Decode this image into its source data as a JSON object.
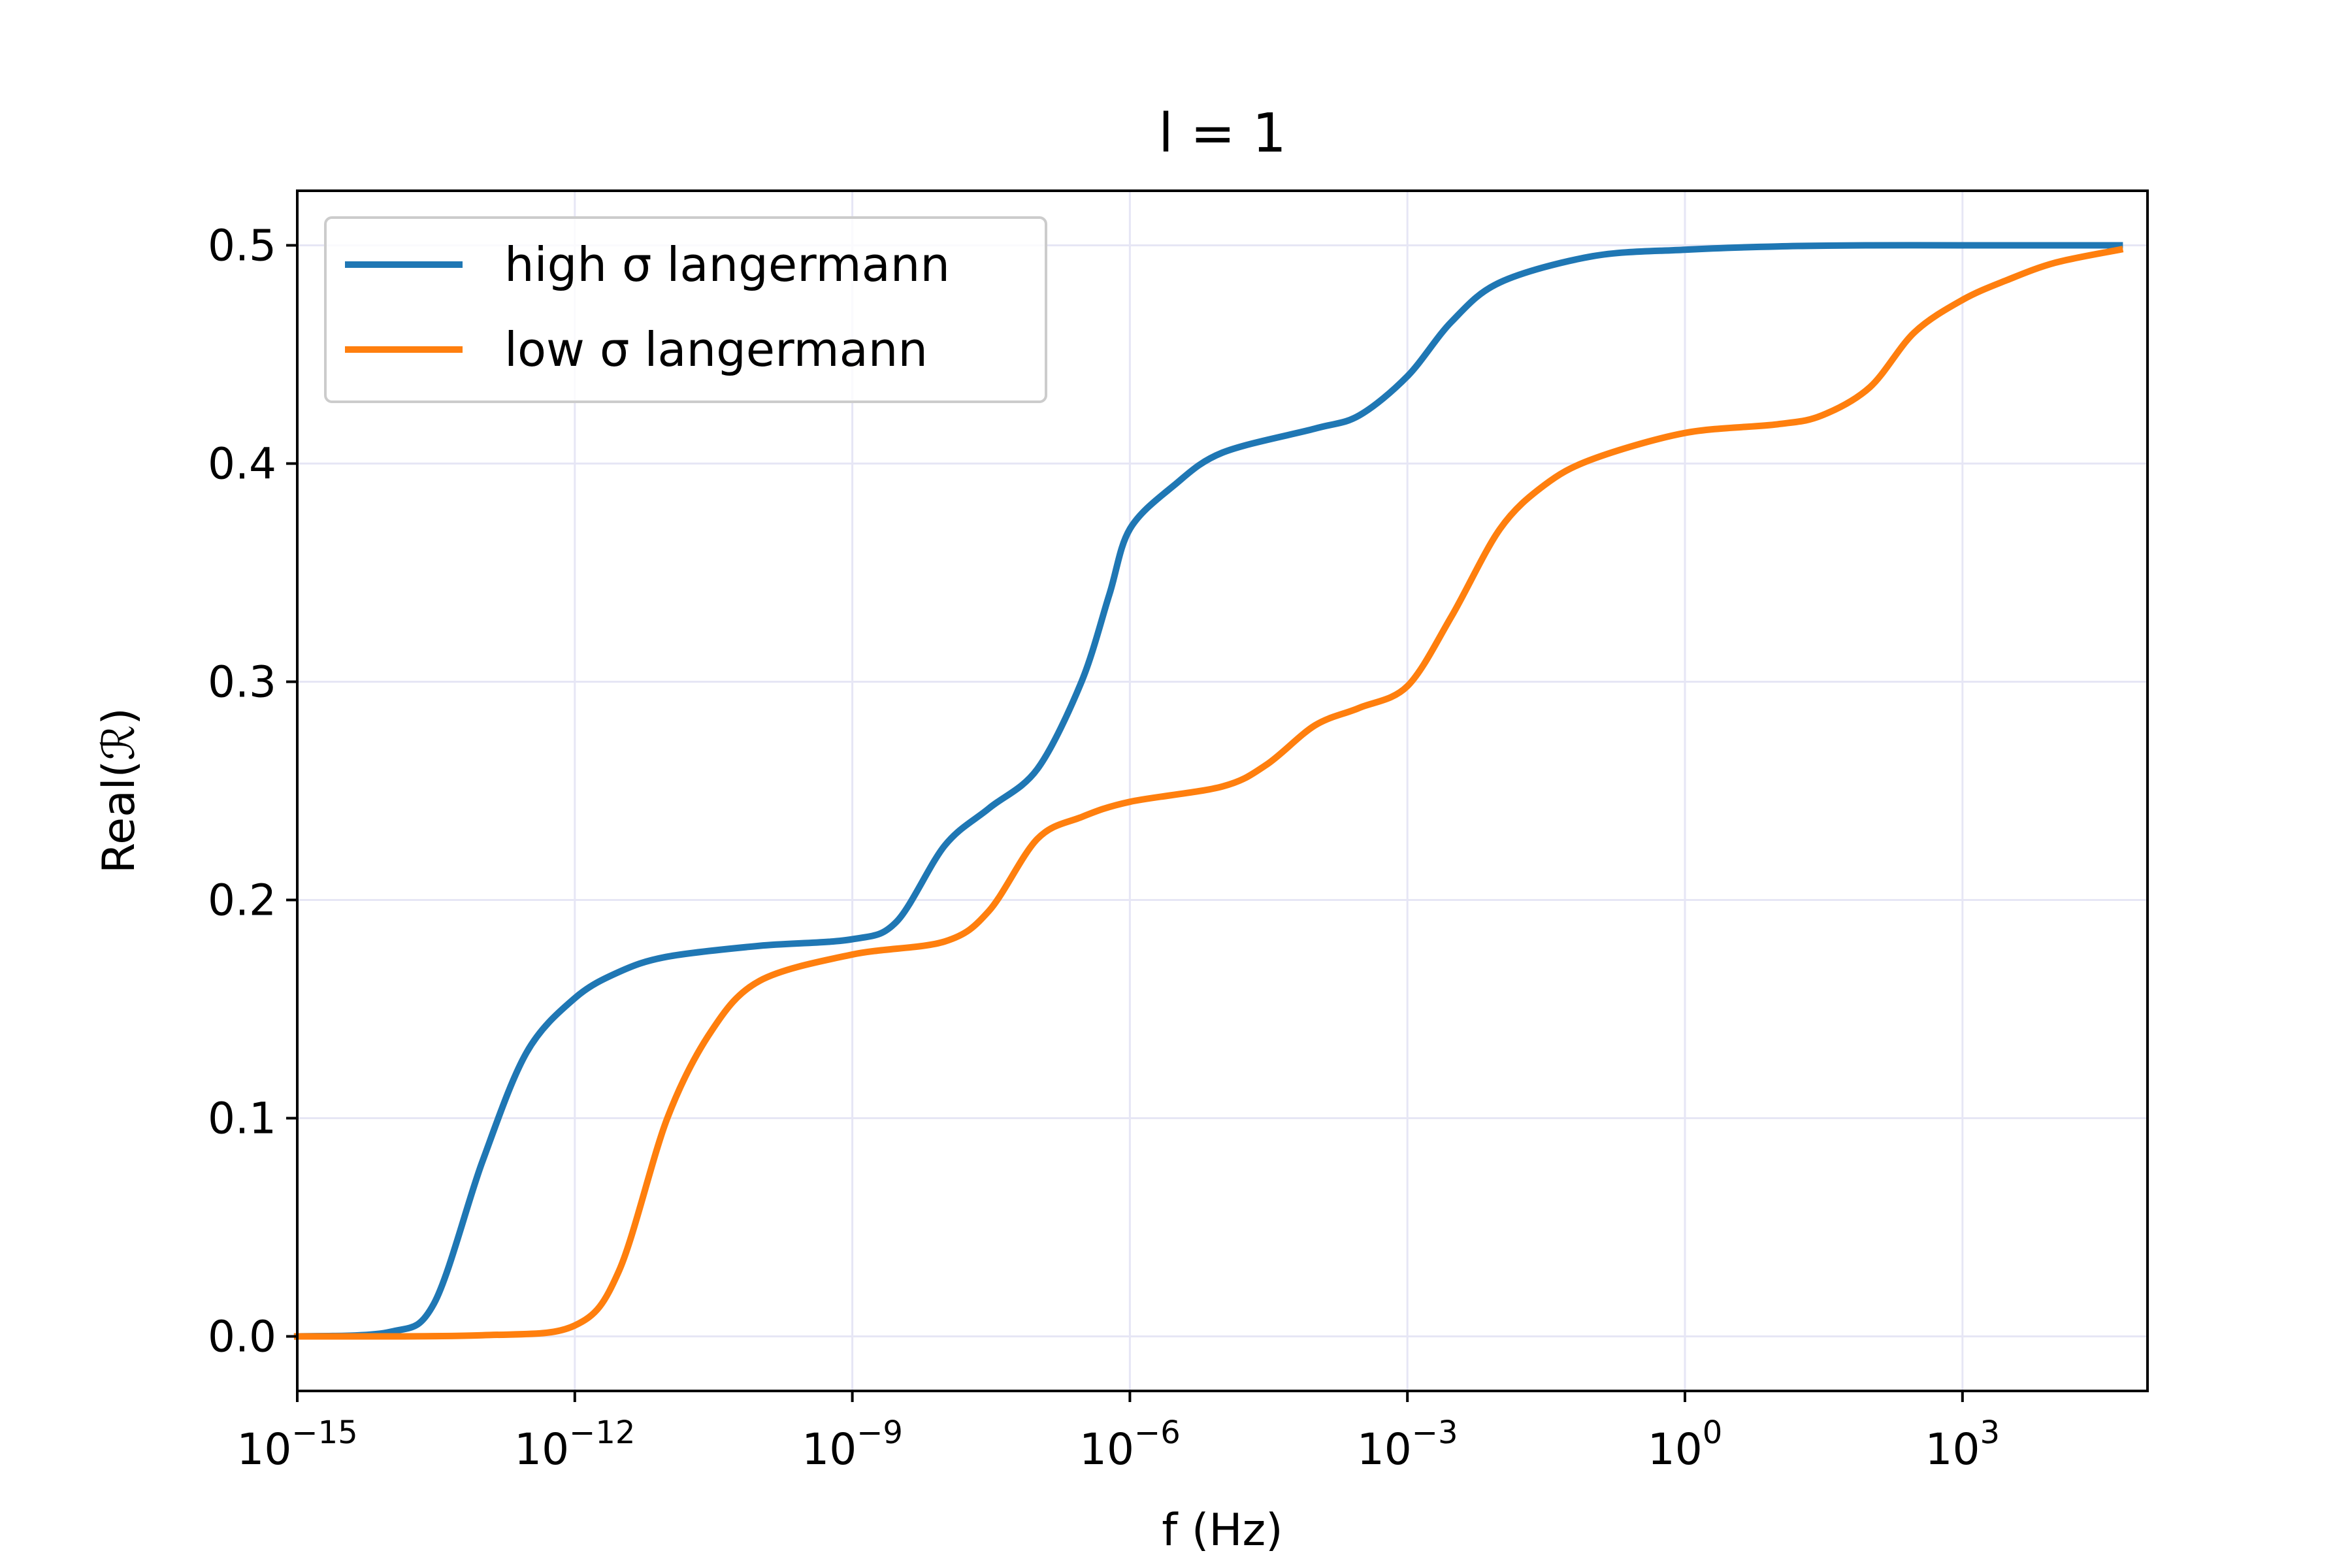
{
  "chart_data": {
    "type": "line",
    "title": "l = 1",
    "xlabel": "f (Hz)",
    "ylabel": "Real(ℛ)",
    "xscale": "log",
    "xlim": [
      1e-15,
      100000.0
    ],
    "ylim": [
      -0.025,
      0.525
    ],
    "grid": true,
    "grid_color": "#e6e6f5",
    "legend_position": "top-left",
    "xticks": [
      {
        "value": 1e-15,
        "base": "10",
        "exp": "−15"
      },
      {
        "value": 1e-12,
        "base": "10",
        "exp": "−12"
      },
      {
        "value": 1e-09,
        "base": "10",
        "exp": "−9"
      },
      {
        "value": 1e-06,
        "base": "10",
        "exp": "−6"
      },
      {
        "value": 0.001,
        "base": "10",
        "exp": "−3"
      },
      {
        "value": 1,
        "base": "10",
        "exp": "0"
      },
      {
        "value": 1000.0,
        "base": "10",
        "exp": "3"
      }
    ],
    "yticks": [
      {
        "value": 0.0,
        "label": "0.0"
      },
      {
        "value": 0.1,
        "label": "0.1"
      },
      {
        "value": 0.2,
        "label": "0.2"
      },
      {
        "value": 0.3,
        "label": "0.3"
      },
      {
        "value": 0.4,
        "label": "0.4"
      },
      {
        "value": 0.5,
        "label": "0.5"
      }
    ],
    "series": [
      {
        "name": "high σ langermann",
        "color": "#1f77b4",
        "x": [
          1e-15,
          1e-14,
          3e-14,
          1e-13,
          3e-13,
          1e-12,
          3e-12,
          1e-11,
          1e-10,
          1e-09,
          3e-09,
          1e-08,
          3e-08,
          1e-07,
          3e-07,
          6e-07,
          1e-06,
          3e-06,
          1e-05,
          0.0001,
          0.0003,
          0.001,
          0.003,
          0.01,
          0.1,
          1,
          10,
          100,
          1000.0,
          10000.0,
          50000.0
        ],
        "y": [
          0.0,
          0.002,
          0.015,
          0.08,
          0.13,
          0.155,
          0.167,
          0.174,
          0.179,
          0.182,
          0.19,
          0.225,
          0.242,
          0.26,
          0.3,
          0.34,
          0.37,
          0.39,
          0.405,
          0.416,
          0.422,
          0.44,
          0.465,
          0.483,
          0.495,
          0.498,
          0.4995,
          0.5,
          0.5,
          0.5,
          0.5
        ]
      },
      {
        "name": "low σ langermann",
        "color": "#ff7f0e",
        "x": [
          1e-15,
          1e-13,
          1e-12,
          3e-12,
          1e-11,
          3e-11,
          1e-10,
          1e-09,
          1e-08,
          3e-08,
          1e-07,
          3e-07,
          1e-06,
          1e-05,
          3e-05,
          0.0001,
          0.0003,
          0.001,
          0.003,
          0.01,
          0.03,
          0.1,
          1,
          10,
          30,
          100,
          300,
          1000.0,
          3000.0,
          10000.0,
          50000.0
        ],
        "y": [
          0.0,
          0.0005,
          0.005,
          0.03,
          0.1,
          0.14,
          0.163,
          0.175,
          0.181,
          0.195,
          0.228,
          0.238,
          0.245,
          0.252,
          0.262,
          0.28,
          0.288,
          0.298,
          0.33,
          0.37,
          0.39,
          0.402,
          0.414,
          0.418,
          0.422,
          0.435,
          0.46,
          0.475,
          0.484,
          0.492,
          0.498
        ]
      }
    ]
  }
}
